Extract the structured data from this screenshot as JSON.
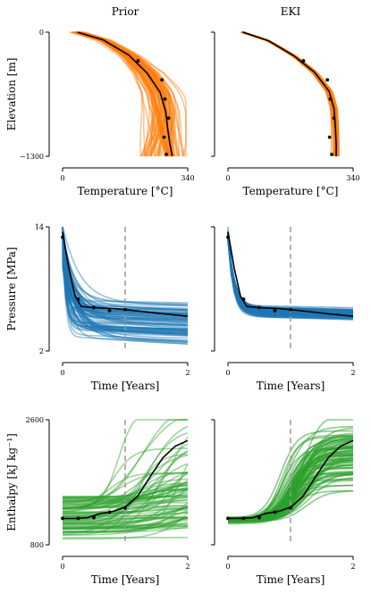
{
  "columns": {
    "left": "Prior",
    "right": "EKI"
  },
  "colors": {
    "temperature": "#ff7f0e",
    "pressure": "#1f77b4",
    "enthalpy": "#2ca02c",
    "truth": "#000000",
    "marker": "#999999"
  },
  "chart_data": [
    {
      "id": "temp-prior",
      "type": "line",
      "column": "Prior",
      "row": 1,
      "xlabel": "Temperature [°C]",
      "ylabel": "Elevation [m]",
      "xlim": [
        0,
        340
      ],
      "ylim": [
        -1300,
        0
      ],
      "xticks": [
        "0",
        "340"
      ],
      "yticks": [
        "0",
        "−1300"
      ],
      "truth": {
        "x": [
          40,
          110,
          180,
          230,
          265,
          280,
          285,
          292,
          298
        ],
        "y": [
          0,
          -80,
          -240,
          -430,
          -630,
          -830,
          -1000,
          -1180,
          -1300
        ]
      },
      "observations": {
        "x": [
          205,
          270,
          278,
          288,
          276,
          282
        ],
        "y": [
          -300,
          -500,
          -700,
          -900,
          -1100,
          -1280
        ]
      },
      "ensemble": {
        "color": "temperature",
        "count": 80,
        "spread": "wide"
      }
    },
    {
      "id": "temp-eki",
      "type": "line",
      "column": "EKI",
      "row": 1,
      "xlabel": "Temperature [°C]",
      "ylabel": "",
      "xlim": [
        0,
        340
      ],
      "ylim": [
        -1300,
        0
      ],
      "xticks": [
        "0",
        "340"
      ],
      "yticks": [],
      "truth": {
        "x": [
          40,
          110,
          180,
          235,
          275,
          288,
          292,
          294,
          294
        ],
        "y": [
          0,
          -90,
          -250,
          -420,
          -620,
          -800,
          -1000,
          -1180,
          -1300
        ]
      },
      "observations": {
        "x": [
          205,
          270,
          278,
          288,
          276,
          282
        ],
        "y": [
          -300,
          -500,
          -700,
          -900,
          -1100,
          -1280
        ]
      },
      "ensemble": {
        "color": "temperature",
        "count": 80,
        "spread": "narrow"
      }
    },
    {
      "id": "pres-prior",
      "type": "line",
      "column": "Prior",
      "row": 2,
      "xlabel": "Time [Years]",
      "ylabel": "Pressure [MPa]",
      "xlim": [
        0,
        2
      ],
      "ylim": [
        2,
        14
      ],
      "xticks": [
        "0",
        "2"
      ],
      "yticks": [
        "14",
        "2"
      ],
      "truth": {
        "x": [
          0,
          0.1,
          0.2,
          0.3,
          0.5,
          0.8,
          1.0,
          1.3,
          1.6,
          2.0
        ],
        "y": [
          13.5,
          10.0,
          7.3,
          6.3,
          6.2,
          6.1,
          6.0,
          5.8,
          5.6,
          5.35
        ]
      },
      "observations": {
        "x": [
          0,
          0.25,
          0.5,
          0.75,
          1.0
        ],
        "y": [
          13.0,
          7.0,
          6.2,
          5.9,
          6.0
        ]
      },
      "marker_x": 1.0,
      "ensemble": {
        "color": "pressure",
        "count": 80,
        "spread": "wide"
      }
    },
    {
      "id": "pres-eki",
      "type": "line",
      "column": "EKI",
      "row": 2,
      "xlabel": "Time [Years]",
      "ylabel": "",
      "xlim": [
        0,
        2
      ],
      "ylim": [
        2,
        14
      ],
      "xticks": [
        "0",
        "2"
      ],
      "yticks": [],
      "truth": {
        "x": [
          0,
          0.1,
          0.2,
          0.3,
          0.5,
          0.8,
          1.0,
          1.3,
          1.6,
          2.0
        ],
        "y": [
          13.5,
          10.0,
          7.3,
          6.3,
          6.2,
          6.1,
          6.0,
          5.8,
          5.6,
          5.35
        ]
      },
      "observations": {
        "x": [
          0,
          0.25,
          0.5,
          0.75,
          1.0
        ],
        "y": [
          13.0,
          7.0,
          6.2,
          5.9,
          6.0
        ]
      },
      "marker_x": 1.0,
      "ensemble": {
        "color": "pressure",
        "count": 80,
        "spread": "narrow"
      }
    },
    {
      "id": "enth-prior",
      "type": "line",
      "column": "Prior",
      "row": 3,
      "xlabel": "Time [Years]",
      "ylabel": "Enthalpy [kJ kg⁻¹]",
      "xlim": [
        0,
        2
      ],
      "ylim": [
        800,
        2600
      ],
      "xticks": [
        "0",
        "2"
      ],
      "yticks": [
        "2600",
        "800"
      ],
      "truth": {
        "x": [
          0,
          0.2,
          0.4,
          0.6,
          0.8,
          1.0,
          1.2,
          1.4,
          1.6,
          1.8,
          2.0
        ],
        "y": [
          1180,
          1180,
          1190,
          1250,
          1280,
          1340,
          1500,
          1780,
          2050,
          2220,
          2300
        ]
      },
      "observations": {
        "x": [
          0,
          0.25,
          0.5,
          0.75,
          1.0
        ],
        "y": [
          1180,
          1180,
          1190,
          1270,
          1330
        ]
      },
      "marker_x": 1.0,
      "ensemble": {
        "color": "enthalpy",
        "count": 80,
        "spread": "wide"
      }
    },
    {
      "id": "enth-eki",
      "type": "line",
      "column": "EKI",
      "row": 3,
      "xlabel": "Time [Years]",
      "ylabel": "",
      "xlim": [
        0,
        2
      ],
      "ylim": [
        800,
        2600
      ],
      "xticks": [
        "0",
        "2"
      ],
      "yticks": [],
      "truth": {
        "x": [
          0,
          0.2,
          0.4,
          0.6,
          0.8,
          1.0,
          1.2,
          1.4,
          1.6,
          1.8,
          2.0
        ],
        "y": [
          1180,
          1180,
          1190,
          1250,
          1280,
          1340,
          1500,
          1780,
          2050,
          2220,
          2300
        ]
      },
      "observations": {
        "x": [
          0,
          0.25,
          0.5,
          0.75,
          1.0
        ],
        "y": [
          1180,
          1180,
          1190,
          1270,
          1330
        ]
      },
      "marker_x": 1.0,
      "ensemble": {
        "color": "enthalpy",
        "count": 80,
        "spread": "narrow"
      }
    }
  ]
}
